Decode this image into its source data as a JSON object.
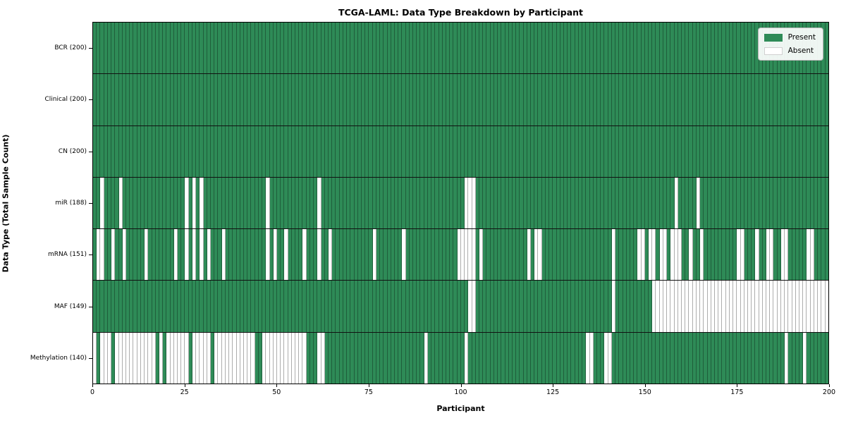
{
  "title": "TCGA-LAML: Data Type Breakdown by Participant",
  "xlabel": "Participant",
  "ylabel": "Data Type (Total Sample Count)",
  "legend": {
    "present_label": "Present",
    "absent_label": "Absent"
  },
  "colors": {
    "present": "#2E8B57",
    "absent": "#FFFFFF",
    "grid_line": "rgba(0,0,0,0.32)",
    "row_separator": "#111111",
    "plot_border": "#000000"
  },
  "chart_data": {
    "type": "heatmap",
    "x_axis": {
      "label": "Participant",
      "min": 0,
      "max": 200,
      "ticks": [
        0,
        25,
        50,
        75,
        100,
        125,
        150,
        175,
        200
      ]
    },
    "n_participants": 200,
    "cell_states": {
      "present": "Present",
      "absent": "Absent"
    },
    "rows": [
      {
        "label": "BCR (200)",
        "name": "BCR",
        "total_samples": 200,
        "absent_participants": []
      },
      {
        "label": "Clinical (200)",
        "name": "Clinical",
        "total_samples": 200,
        "absent_participants": []
      },
      {
        "label": "CN (200)",
        "name": "CN",
        "total_samples": 200,
        "absent_participants": []
      },
      {
        "label": "miR (188)",
        "name": "miR",
        "total_samples": 188,
        "absent_participants": [
          2,
          7,
          25,
          27,
          29,
          47,
          61,
          101,
          102,
          103,
          158,
          164
        ]
      },
      {
        "label": "mRNA (151)",
        "name": "mRNA",
        "total_samples": 151,
        "absent_participants": [
          1,
          2,
          5,
          8,
          14,
          22,
          25,
          27,
          29,
          31,
          35,
          47,
          49,
          52,
          57,
          61,
          64,
          76,
          84,
          99,
          100,
          101,
          102,
          103,
          105,
          118,
          120,
          121,
          141,
          148,
          149,
          151,
          152,
          154,
          155,
          157,
          158,
          159,
          162,
          165,
          175,
          176,
          180,
          183,
          184,
          187,
          188,
          194,
          195
        ]
      },
      {
        "label": "MAF (149)",
        "name": "MAF",
        "total_samples": 149,
        "absent_participants": [
          102,
          103,
          141,
          152,
          153,
          154,
          155,
          156,
          157,
          158,
          159,
          160,
          161,
          162,
          163,
          164,
          165,
          166,
          167,
          168,
          169,
          170,
          171,
          172,
          173,
          174,
          175,
          176,
          177,
          178,
          179,
          180,
          181,
          182,
          183,
          184,
          185,
          186,
          187,
          188,
          189,
          190,
          191,
          192,
          193,
          194,
          195,
          196,
          197,
          198,
          199
        ]
      },
      {
        "label": "Methylation (140)",
        "name": "Methylation",
        "total_samples": 140,
        "absent_participants": [
          0,
          2,
          3,
          4,
          6,
          7,
          8,
          9,
          10,
          11,
          12,
          13,
          14,
          15,
          16,
          18,
          20,
          21,
          22,
          23,
          24,
          25,
          27,
          28,
          29,
          30,
          31,
          33,
          34,
          35,
          36,
          37,
          38,
          39,
          40,
          41,
          42,
          43,
          46,
          47,
          48,
          49,
          50,
          51,
          52,
          53,
          54,
          55,
          56,
          57,
          61,
          62,
          90,
          101,
          134,
          135,
          139,
          140,
          188,
          193
        ]
      }
    ]
  }
}
